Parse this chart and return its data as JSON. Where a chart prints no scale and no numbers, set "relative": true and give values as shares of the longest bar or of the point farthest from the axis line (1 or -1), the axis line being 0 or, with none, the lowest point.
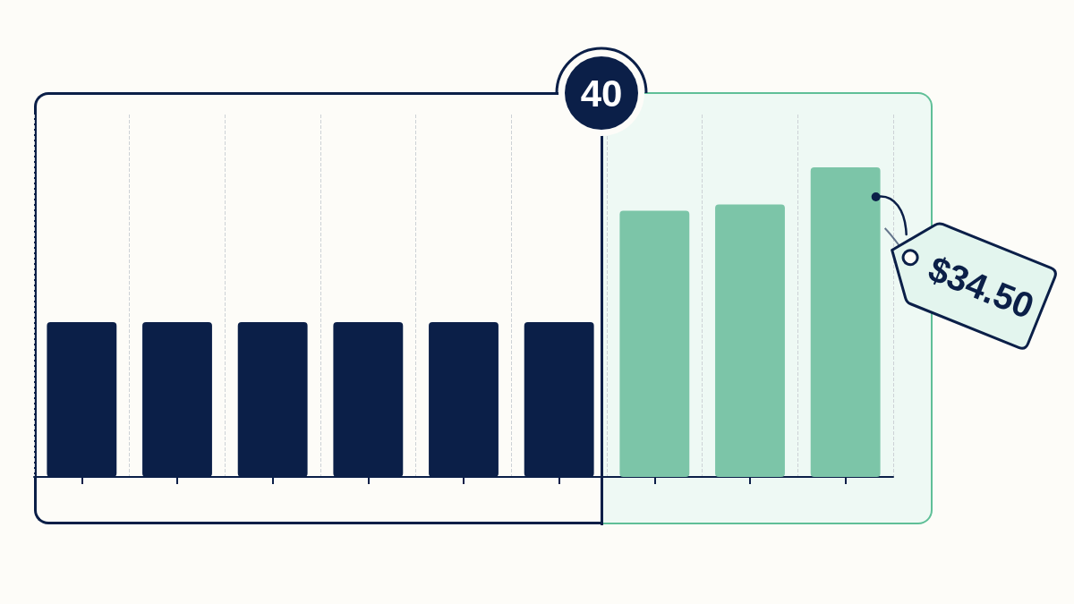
{
  "chart_data": {
    "type": "bar",
    "relative": true,
    "categories": [
      null,
      null,
      null,
      null,
      null,
      null,
      null,
      null,
      null
    ],
    "values": [
      0.5,
      0.5,
      0.5,
      0.5,
      0.5,
      0.5,
      0.86,
      0.88,
      1
    ],
    "colors": [
      "#0b1f48",
      "#0b1f48",
      "#0b1f48",
      "#0b1f48",
      "#0b1f48",
      "#0b1f48",
      "#7cc5a8",
      "#7cc5a8",
      "#7cc5a8"
    ],
    "grid": "x",
    "annotations": [
      "40",
      "$34.50"
    ]
  }
}
